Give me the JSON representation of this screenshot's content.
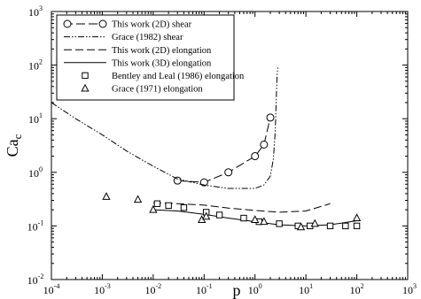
{
  "chart_data": {
    "type": "scatter",
    "xscale": "log",
    "yscale": "log",
    "xlim": [
      0.0001,
      1000
    ],
    "ylim": [
      0.01,
      1000
    ],
    "grid": false,
    "legend_position": "top-left",
    "xlabel": "p",
    "ylabel_main": "Ca",
    "ylabel_sub": "c",
    "xticks": [
      {
        "base": "10",
        "exp": "-4",
        "value": 0.0001
      },
      {
        "base": "10",
        "exp": "-3",
        "value": 0.001
      },
      {
        "base": "10",
        "exp": "-2",
        "value": 0.01
      },
      {
        "base": "10",
        "exp": "-1",
        "value": 0.1
      },
      {
        "base": "10",
        "exp": "0",
        "value": 1
      },
      {
        "base": "10",
        "exp": "1",
        "value": 10
      },
      {
        "base": "10",
        "exp": "2",
        "value": 100
      },
      {
        "base": "10",
        "exp": "3",
        "value": 1000
      }
    ],
    "yticks": [
      {
        "base": "10",
        "exp": "-2",
        "value": 0.01
      },
      {
        "base": "10",
        "exp": "-1",
        "value": 0.1
      },
      {
        "base": "10",
        "exp": "0",
        "value": 1
      },
      {
        "base": "10",
        "exp": "1",
        "value": 10
      },
      {
        "base": "10",
        "exp": "2",
        "value": 100
      },
      {
        "base": "10",
        "exp": "3",
        "value": 1000
      }
    ],
    "series": [
      {
        "name": "This work (2D) shear",
        "style": "long-dash-circle",
        "x": [
          0.03,
          0.1,
          0.3,
          1,
          1.5,
          2
        ],
        "y": [
          0.7,
          0.65,
          1.0,
          2.0,
          3.3,
          10.5
        ]
      },
      {
        "name": "Grace (1982) shear",
        "style": "dash-dot-dot",
        "x": [
          0.0001,
          0.0003,
          0.001,
          0.003,
          0.01,
          0.03,
          0.1,
          0.3,
          1,
          1.5,
          2,
          2.3,
          2.5,
          2.6,
          2.7,
          2.8
        ],
        "y": [
          20,
          10,
          5,
          2.5,
          1.3,
          0.75,
          0.58,
          0.5,
          0.5,
          0.58,
          0.85,
          1.8,
          6,
          20,
          60,
          90
        ]
      },
      {
        "name": "This work (2D) elongation",
        "style": "dashed",
        "x": [
          0.01,
          0.03,
          0.1,
          0.3,
          1,
          3,
          10,
          30
        ],
        "y": [
          0.27,
          0.26,
          0.245,
          0.215,
          0.195,
          0.18,
          0.19,
          0.26
        ]
      },
      {
        "name": "This work (3D) elongation",
        "style": "solid",
        "x": [
          0.01,
          0.03,
          0.1,
          0.3,
          1,
          3,
          10,
          30,
          100
        ],
        "y": [
          0.2,
          0.19,
          0.165,
          0.14,
          0.12,
          0.105,
          0.1,
          0.105,
          0.125
        ]
      },
      {
        "name": "Bentley and Leal (1986) elongation",
        "style": "square",
        "x": [
          0.012,
          0.02,
          0.04,
          0.11,
          0.2,
          0.6,
          1.2,
          3,
          7,
          12,
          30,
          60,
          100
        ],
        "y": [
          0.26,
          0.24,
          0.22,
          0.18,
          0.16,
          0.14,
          0.12,
          0.11,
          0.1,
          0.1,
          0.1,
          0.1,
          0.1
        ]
      },
      {
        "name": "Grace (1971) elongation",
        "style": "triangle",
        "x": [
          0.0012,
          0.005,
          0.01,
          0.09,
          0.11,
          1.0,
          1.5,
          8,
          15,
          100
        ],
        "y": [
          0.35,
          0.31,
          0.2,
          0.13,
          0.15,
          0.13,
          0.12,
          0.095,
          0.11,
          0.14
        ]
      }
    ]
  }
}
